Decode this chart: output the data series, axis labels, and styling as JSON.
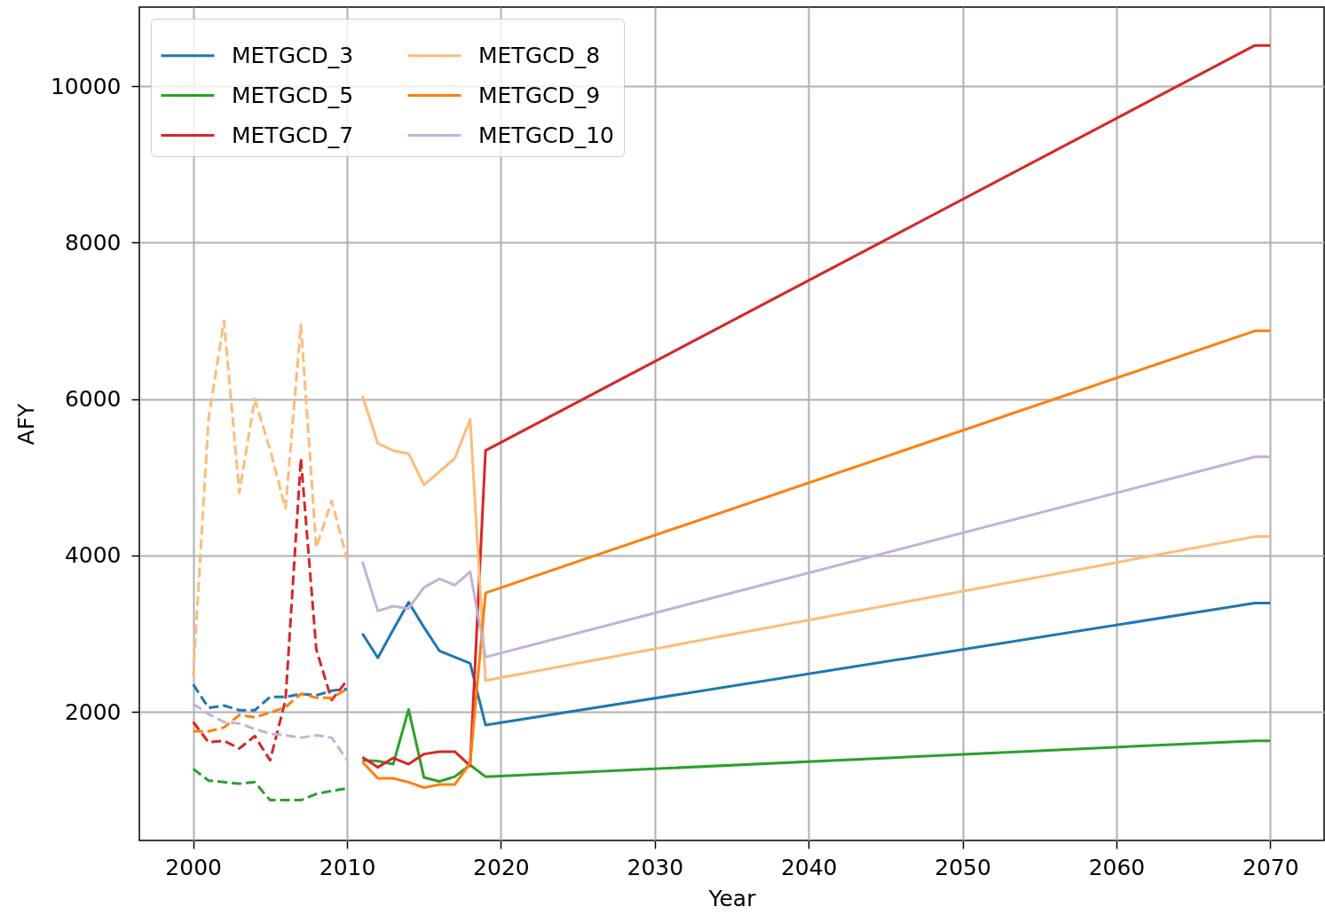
{
  "chart_data": {
    "type": "line",
    "xlabel": "Year",
    "ylabel": "AFY",
    "xlim": [
      1996.5,
      2073.5
    ],
    "xticks": [
      2000,
      2010,
      2020,
      2030,
      2040,
      2050,
      2060,
      2070
    ],
    "ylim": [
      355,
      11010
    ],
    "yticks": [
      2000,
      4000,
      6000,
      8000,
      10000
    ],
    "grid": true,
    "legend": "top left",
    "series": [
      {
        "color": "#1f77b4",
        "line_style": "dashed",
        "x": [
          2000,
          2001,
          2002,
          2003,
          2004,
          2005,
          2006,
          2007,
          2008,
          2009,
          2010
        ],
        "values": [
          2350,
          2050,
          2080,
          2020,
          2020,
          2190,
          2190,
          2230,
          2210,
          2270,
          2290
        ]
      },
      {
        "color": "#2ca02c",
        "line_style": "dashed",
        "x": [
          2000,
          2001,
          2002,
          2003,
          2004,
          2005,
          2006,
          2007,
          2008,
          2009,
          2010
        ],
        "values": [
          1270,
          1120,
          1100,
          1080,
          1100,
          870,
          870,
          870,
          950,
          990,
          1020
        ]
      },
      {
        "color": "#d62728",
        "line_style": "dashed",
        "x": [
          2000,
          2001,
          2002,
          2003,
          2004,
          2005,
          2006,
          2007,
          2008,
          2009,
          2010
        ],
        "values": [
          1870,
          1610,
          1630,
          1530,
          1690,
          1380,
          2150,
          5240,
          2800,
          2150,
          2400
        ]
      },
      {
        "color": "#ffbb78",
        "line_style": "dashed",
        "x": [
          2000,
          2001,
          2002,
          2003,
          2004,
          2005,
          2006,
          2007,
          2008,
          2009,
          2010
        ],
        "values": [
          2450,
          5750,
          7000,
          4800,
          6000,
          5350,
          4600,
          6950,
          4100,
          4700,
          3950
        ]
      },
      {
        "color": "#ff7f0e",
        "line_style": "dashed",
        "x": [
          2000,
          2001,
          2002,
          2003,
          2004,
          2005,
          2006,
          2007,
          2008,
          2009,
          2010
        ],
        "values": [
          1750,
          1750,
          1800,
          1960,
          1930,
          1990,
          2060,
          2230,
          2180,
          2180,
          2290
        ]
      },
      {
        "color": "#c5b0d5",
        "line_style": "dashed",
        "x": [
          2000,
          2001,
          2002,
          2003,
          2004,
          2005,
          2006,
          2007,
          2008,
          2009,
          2010
        ],
        "values": [
          2100,
          1970,
          1870,
          1850,
          1780,
          1720,
          1700,
          1670,
          1700,
          1670,
          1380
        ]
      },
      {
        "name": "METGCD_3",
        "color": "#1f77b4",
        "line_style": "solid",
        "x": [
          2011,
          2012,
          2013,
          2014,
          2015,
          2016,
          2017,
          2018,
          2019,
          2069,
          2070
        ],
        "values": [
          3000,
          2690,
          3050,
          3400,
          3080,
          2780,
          2700,
          2620,
          1830,
          3390,
          3390
        ]
      },
      {
        "name": "METGCD_5",
        "color": "#2ca02c",
        "line_style": "solid",
        "x": [
          2011,
          2012,
          2013,
          2014,
          2015,
          2016,
          2017,
          2018,
          2019,
          2069,
          2070
        ],
        "values": [
          1380,
          1370,
          1330,
          2030,
          1160,
          1110,
          1170,
          1320,
          1170,
          1630,
          1630
        ]
      },
      {
        "name": "METGCD_7",
        "color": "#d62728",
        "line_style": "solid",
        "x": [
          2011,
          2012,
          2013,
          2014,
          2015,
          2016,
          2017,
          2018,
          2019,
          2069,
          2070
        ],
        "values": [
          1420,
          1290,
          1410,
          1330,
          1460,
          1490,
          1490,
          1310,
          5340,
          10520,
          10520
        ]
      },
      {
        "name": "METGCD_8",
        "color": "#ffbb78",
        "line_style": "solid",
        "x": [
          2011,
          2012,
          2013,
          2014,
          2015,
          2016,
          2017,
          2018,
          2019,
          2069,
          2070
        ],
        "values": [
          6040,
          5430,
          5340,
          5300,
          4900,
          5070,
          5240,
          5740,
          2400,
          4240,
          4240
        ]
      },
      {
        "name": "METGCD_9",
        "color": "#ff7f0e",
        "line_style": "solid",
        "x": [
          2011,
          2012,
          2013,
          2014,
          2015,
          2016,
          2017,
          2018,
          2019,
          2069,
          2070
        ],
        "values": [
          1360,
          1150,
          1150,
          1100,
          1030,
          1070,
          1070,
          1340,
          3520,
          6870,
          6870
        ]
      },
      {
        "name": "METGCD_10",
        "color": "#c5b0d5",
        "line_style": "solid",
        "x": [
          2011,
          2012,
          2013,
          2014,
          2015,
          2016,
          2017,
          2018,
          2019,
          2069,
          2070
        ],
        "values": [
          3920,
          3290,
          3350,
          3320,
          3590,
          3700,
          3620,
          3790,
          2700,
          5260,
          5260
        ]
      }
    ]
  }
}
